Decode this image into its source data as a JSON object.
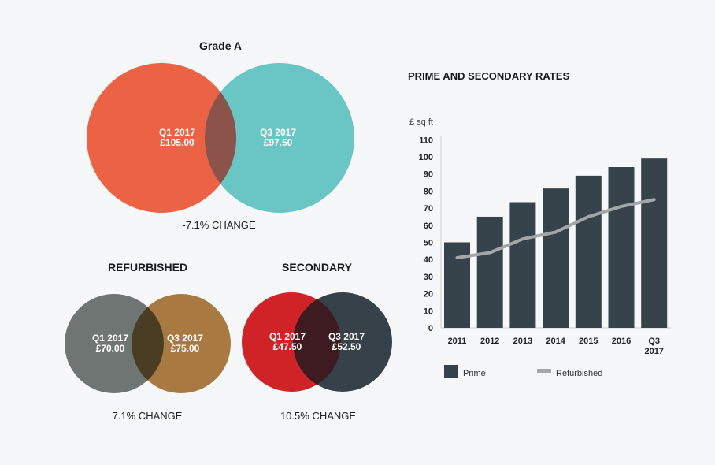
{
  "venns": [
    {
      "title": "Grade A",
      "left": {
        "label": "Q1 2017",
        "value": "£105.00",
        "color": "#ec6245"
      },
      "right": {
        "label": "Q3 2017",
        "value": "£97.50",
        "color": "#69c6c5"
      },
      "overlap_color": "#8b5349",
      "change": "-7.1% CHANGE"
    },
    {
      "title": "REFURBISHED",
      "left": {
        "label": "Q1 2017",
        "value": "£70.00",
        "color": "#6f7572"
      },
      "right": {
        "label": "Q3 2017",
        "value": "£75.00",
        "color": "#a87941"
      },
      "overlap_color": "#4a3d23",
      "change": "7.1% CHANGE"
    },
    {
      "title": "SECONDARY",
      "left": {
        "label": "Q1 2017",
        "value": "£47.50",
        "color": "#cf2327"
      },
      "right": {
        "label": "Q3 2017",
        "value": "£52.50",
        "color": "#37414a"
      },
      "overlap_color": "#3d1b20",
      "change": "10.5% CHANGE"
    }
  ],
  "chart_data": {
    "type": "bar",
    "title": "PRIME AND SECONDARY RATES",
    "ylabel": "£ sq ft",
    "ylim": [
      0,
      110
    ],
    "yticks": [
      "0",
      "10",
      "20",
      "30",
      "40",
      "50",
      "60",
      "70",
      "80",
      "90",
      "100",
      "110"
    ],
    "categories": [
      "2011",
      "2012",
      "2013",
      "2014",
      "2015",
      "2016",
      "Q3 2017"
    ],
    "series": [
      {
        "name": "Prime",
        "type": "bar",
        "color": "#37434b",
        "values": [
          50,
          65,
          73.5,
          81.5,
          89,
          94,
          99
        ]
      },
      {
        "name": "Refurbished",
        "type": "line",
        "color": "#a4a7a9",
        "values": [
          41,
          44,
          52,
          56,
          65,
          71,
          75
        ]
      }
    ],
    "grid": false,
    "legend": "bottom"
  }
}
